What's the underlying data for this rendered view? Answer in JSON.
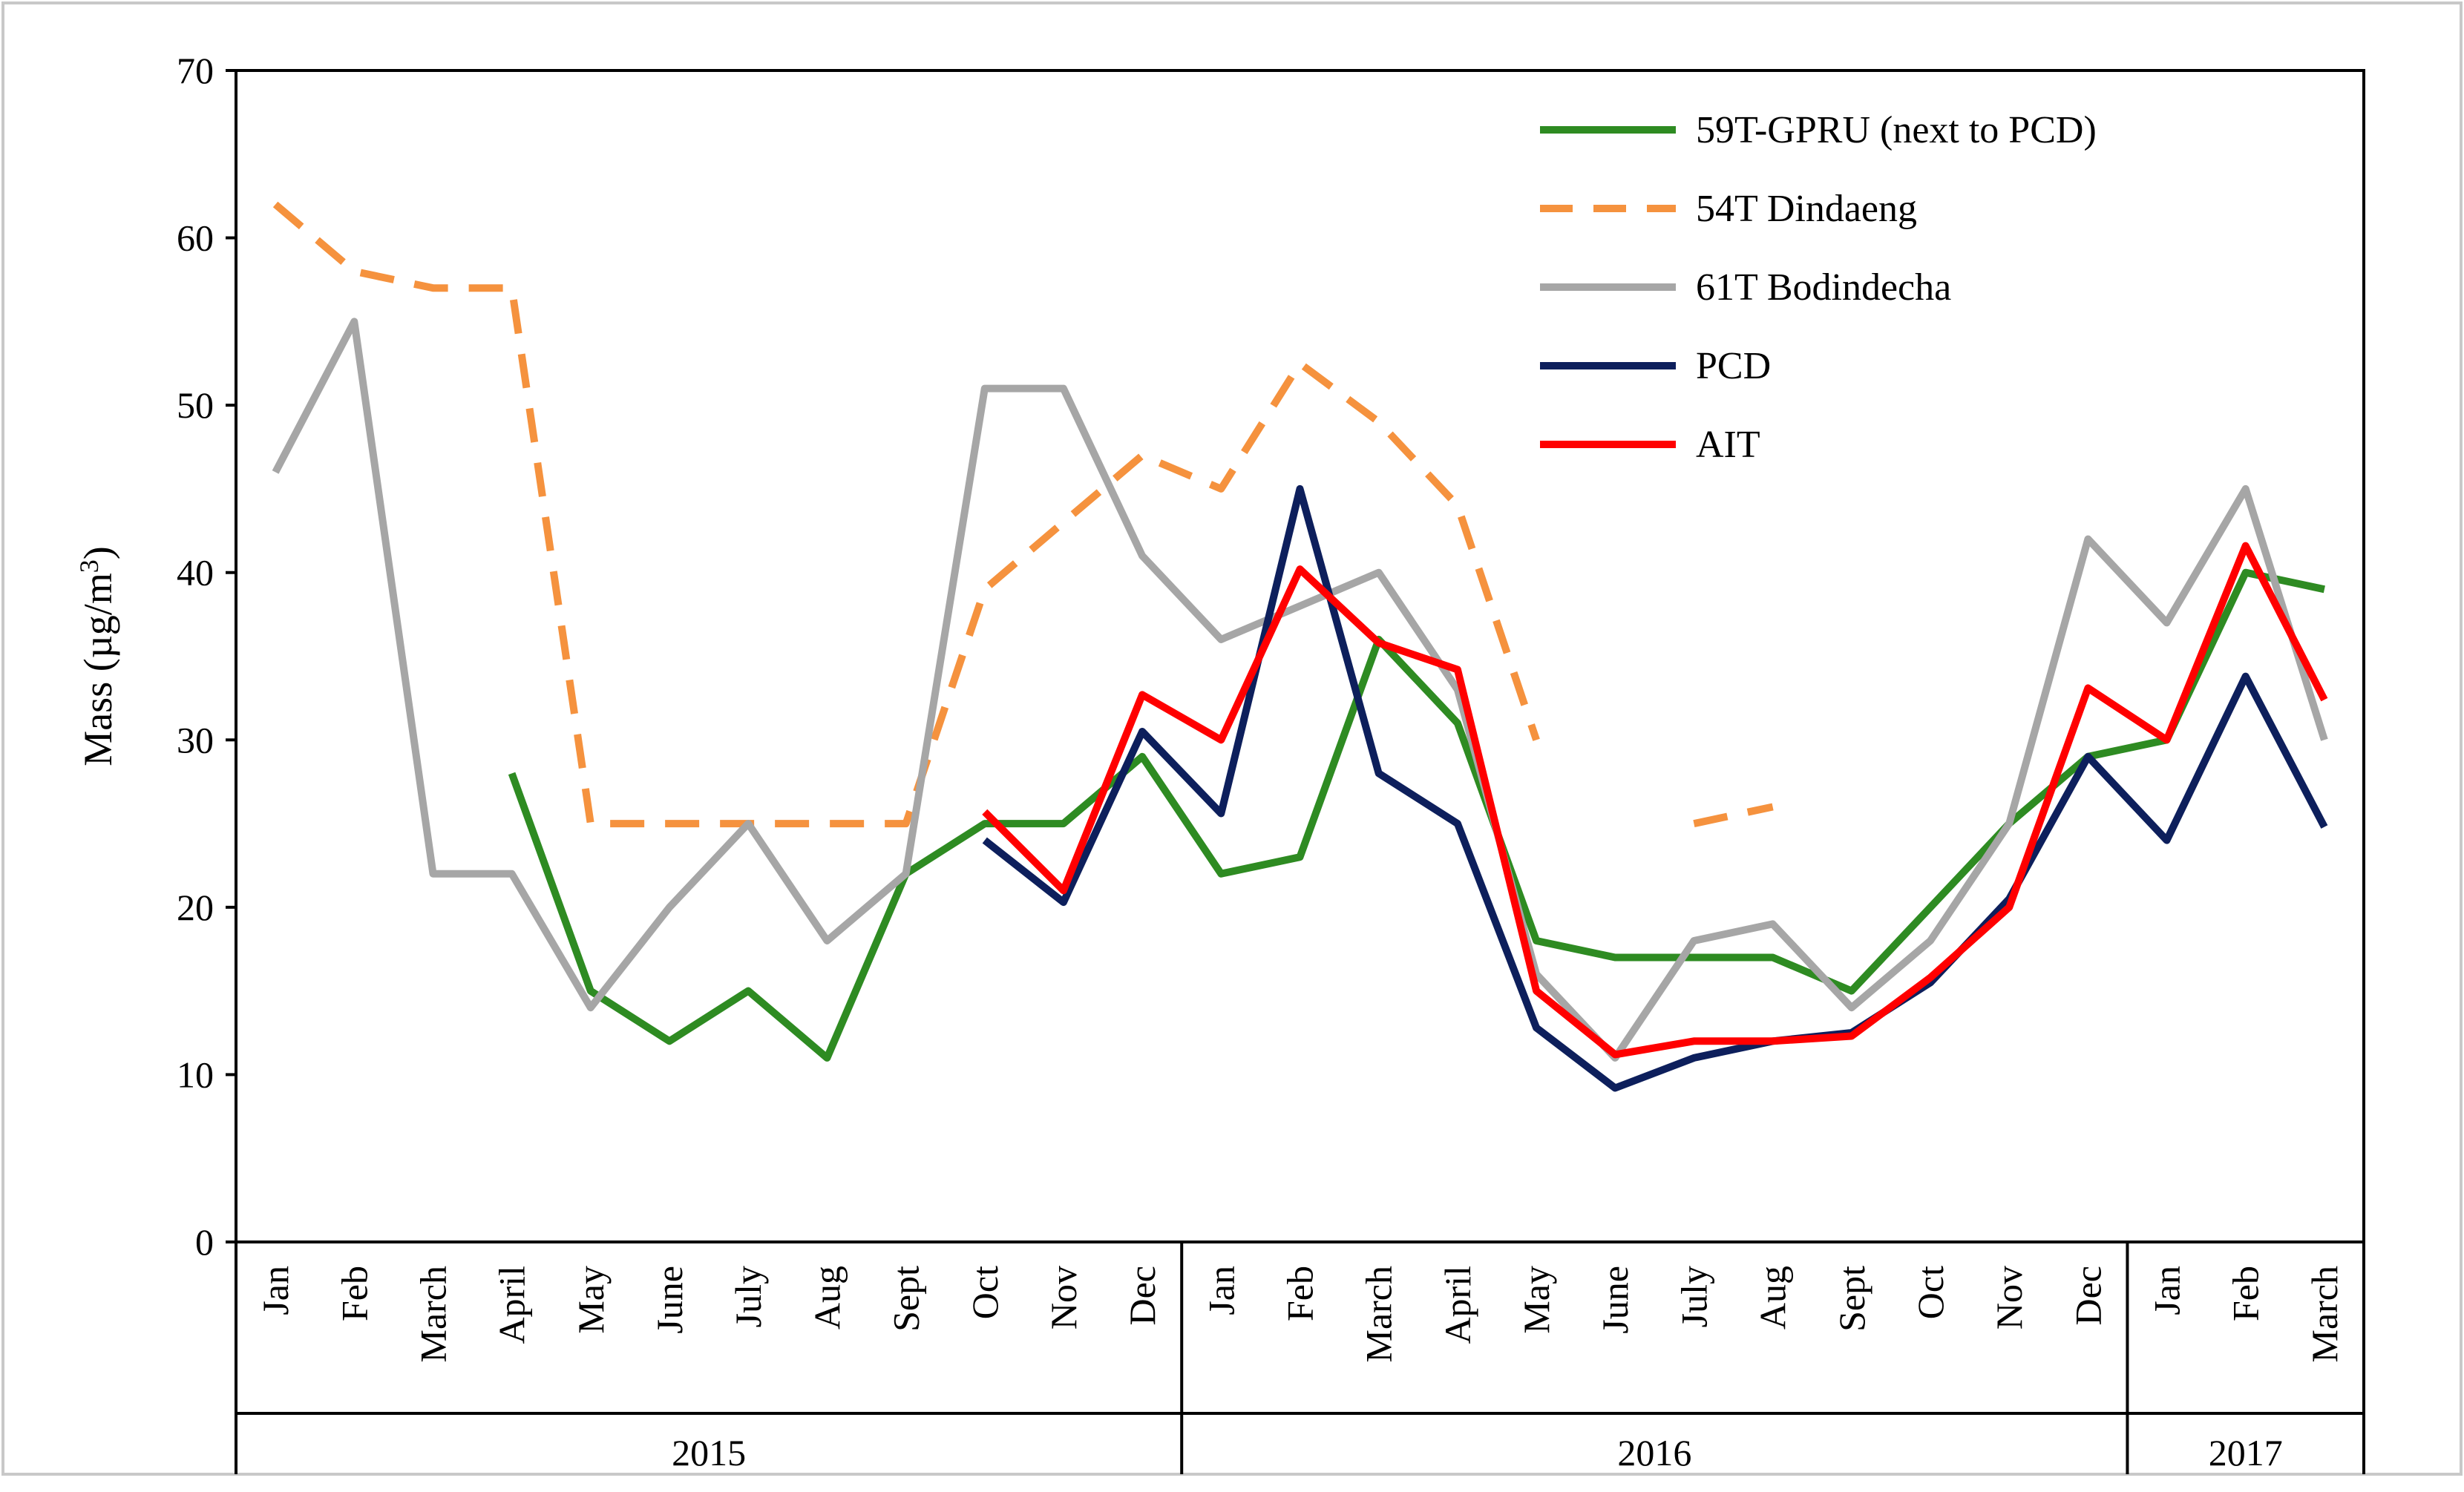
{
  "chart_data": {
    "type": "line",
    "title": "",
    "xlabel": "",
    "ylabel": "Mass (µg/m³)",
    "ylabel_parts": {
      "prefix": "Mass (µg/m",
      "superscript": "3",
      "suffix": ")"
    },
    "ylim": [
      0,
      70
    ],
    "yticks": [
      "0",
      "10",
      "20",
      "30",
      "40",
      "50",
      "60",
      "70"
    ],
    "categories": [
      "Jan",
      "Feb",
      "March",
      "April",
      "May",
      "June",
      "July",
      "Aug",
      "Sept",
      "Oct",
      "Nov",
      "Dec",
      "Jan",
      "Feb",
      "March",
      "April",
      "May",
      "June",
      "July",
      "Aug",
      "Sept",
      "Oct",
      "Nov",
      "Dec",
      "Jan",
      "Feb",
      "March"
    ],
    "groups": [
      {
        "label": "2015",
        "span": 12
      },
      {
        "label": "2016",
        "span": 12
      },
      {
        "label": "2017",
        "span": 3
      }
    ],
    "legend_position": "top-right",
    "grid": false,
    "series": [
      {
        "name": "59T-GPRU (next to PCD)",
        "color": "#2e8b22",
        "dash": "solid",
        "values": [
          null,
          null,
          null,
          28,
          15,
          12,
          15,
          11,
          22,
          25,
          25,
          29,
          22,
          23,
          36,
          31,
          18,
          17,
          17,
          17,
          15,
          20,
          25,
          29,
          30,
          40,
          39
        ]
      },
      {
        "name": "54T Dindaeng",
        "color": "#f5923e",
        "dash": "dashed",
        "values": [
          62,
          58,
          57,
          57,
          25,
          25,
          25,
          25,
          25,
          39,
          43,
          47,
          45,
          52.5,
          49,
          44,
          30,
          null,
          25,
          26,
          null,
          null,
          null,
          null,
          null,
          null,
          null
        ]
      },
      {
        "name": "61T Bodindecha",
        "color": "#a6a6a6",
        "dash": "solid",
        "values": [
          46,
          55,
          22,
          22,
          14,
          20,
          25,
          18,
          22,
          51,
          51,
          41,
          36,
          38,
          40,
          33,
          16,
          11,
          18,
          19,
          14,
          18,
          25,
          42,
          37,
          45,
          30
        ]
      },
      {
        "name": "PCD",
        "color": "#0d1f5c",
        "dash": "solid",
        "values": [
          null,
          null,
          null,
          null,
          null,
          null,
          null,
          null,
          null,
          24,
          20.3,
          30.5,
          25.6,
          45,
          28,
          25,
          12.8,
          9.2,
          11,
          12,
          12.5,
          15.5,
          20.5,
          29,
          24,
          33.8,
          24.8
        ]
      },
      {
        "name": "AIT",
        "color": "#ff0000",
        "dash": "solid",
        "values": [
          null,
          null,
          null,
          null,
          null,
          null,
          null,
          null,
          null,
          25.7,
          21,
          32.7,
          30,
          40.2,
          35.8,
          34.2,
          15,
          11.2,
          12,
          12,
          12.3,
          15.8,
          20,
          33.1,
          30,
          41.6,
          32.4
        ]
      }
    ]
  }
}
